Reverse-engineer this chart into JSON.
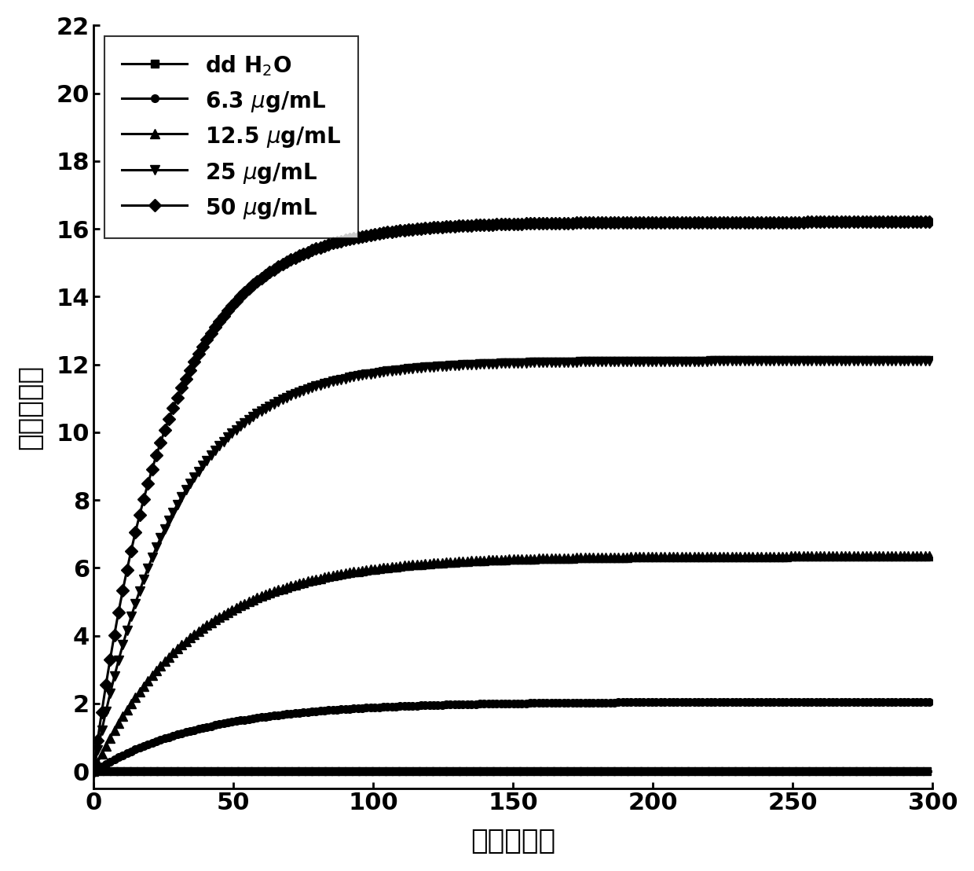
{
  "title": "",
  "xlabel": "时间（秒）",
  "ylabel": "升高的温度",
  "xlim": [
    0,
    300
  ],
  "ylim": [
    -0.5,
    22
  ],
  "yticks": [
    0,
    2,
    4,
    6,
    8,
    10,
    12,
    14,
    16,
    18,
    20,
    22
  ],
  "xticks": [
    0,
    50,
    100,
    150,
    200,
    250,
    300
  ],
  "series": [
    {
      "label": "dd H$_2$O",
      "plateau": 0.0,
      "rate": 0.001,
      "marker": "s",
      "markersize": 7,
      "markevery": 8
    },
    {
      "label": "6.3 $\\mu$g/mL",
      "plateau": 2.05,
      "rate": 0.025,
      "marker": "o",
      "markersize": 7,
      "markevery": 5
    },
    {
      "label": "12.5 $\\mu$g/mL",
      "plateau": 6.35,
      "rate": 0.028,
      "marker": "^",
      "markersize": 8,
      "markevery": 5
    },
    {
      "label": "25 $\\mu$g/mL",
      "plateau": 12.1,
      "rate": 0.035,
      "marker": "v",
      "markersize": 8,
      "markevery": 5
    },
    {
      "label": "50 $\\mu$g/mL",
      "plateau": 16.2,
      "rate": 0.038,
      "marker": "D",
      "markersize": 8,
      "markevery": 5
    }
  ],
  "background_color": "#ffffff",
  "linewidth": 2.2,
  "legend_fontsize": 20,
  "axis_fontsize": 26,
  "tick_fontsize": 22
}
